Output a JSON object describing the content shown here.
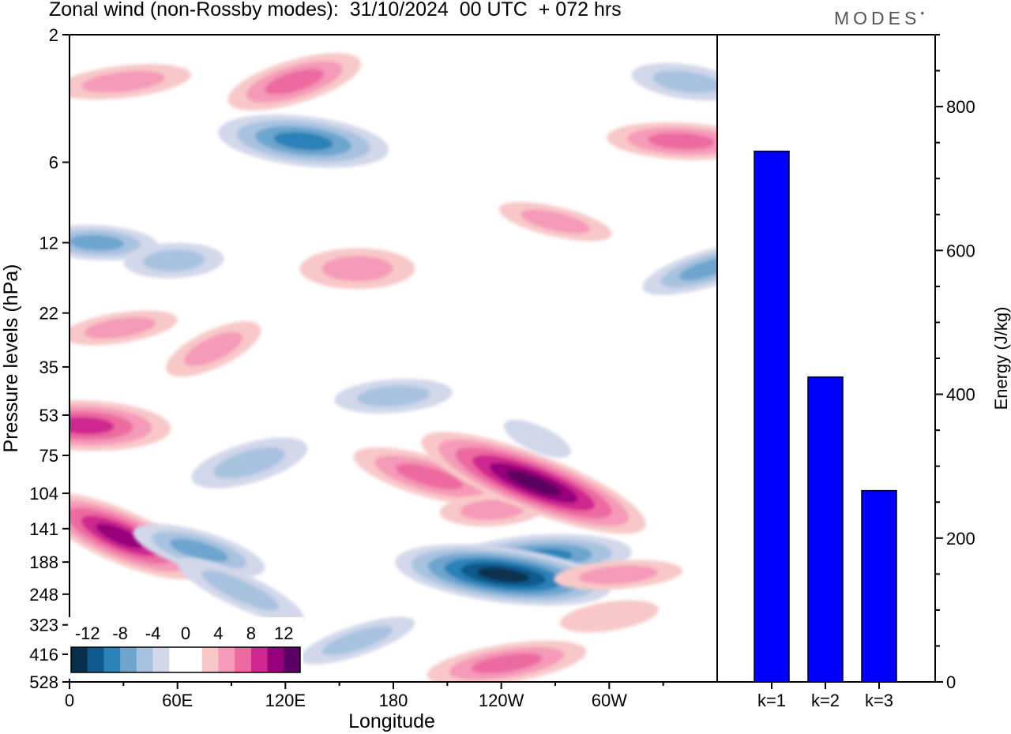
{
  "header": {
    "title": "Zonal wind (non-Rossby modes):  31/10/2024  00 UTC  + 072 hrs",
    "brand": "MODES"
  },
  "colors": {
    "contour_scale": [
      "#08304d",
      "#0e5a8f",
      "#2b82b8",
      "#6ea5cf",
      "#a8c3e0",
      "#d2d7ea",
      "#ffffff",
      "#ffffff",
      "#f8c8c8",
      "#f59ab8",
      "#ec6aa0",
      "#cf268f",
      "#96007a",
      "#5b0062"
    ],
    "bar": "#0000ff",
    "axis": "#000000"
  },
  "chart_data": [
    {
      "type": "heatmap",
      "title": "Zonal wind (non-Rossby modes):  31/10/2024  00 UTC  + 072 hrs",
      "xlabel": "Longitude",
      "ylabel": "Pressure levels (hPa)",
      "xlim": [
        0,
        360
      ],
      "x_ticks": [
        "0",
        "60E",
        "120E",
        "180",
        "120W",
        "60W"
      ],
      "x_tick_values": [
        0,
        60,
        120,
        180,
        240,
        300
      ],
      "y_scale": "log",
      "y_ticks": [
        "2",
        "6",
        "12",
        "22",
        "35",
        "53",
        "75",
        "104",
        "141",
        "188",
        "248",
        "323",
        "416",
        "528"
      ],
      "colorbar": {
        "labels": [
          "-12",
          "-8",
          "-4",
          "0",
          "4",
          "8",
          "12"
        ],
        "range": [
          -14,
          14
        ],
        "step": 2
      },
      "features": [
        {
          "x": 15,
          "p": 12,
          "value": -6
        },
        {
          "x": 30,
          "p": 3,
          "value": 4
        },
        {
          "x": 58,
          "p": 14,
          "value": -3
        },
        {
          "x": 130,
          "p": 5,
          "value": -8
        },
        {
          "x": 125,
          "p": 3,
          "value": 5
        },
        {
          "x": 28,
          "p": 25,
          "value": 3
        },
        {
          "x": 8,
          "p": 58,
          "value": 7
        },
        {
          "x": 28,
          "p": 150,
          "value": 9
        },
        {
          "x": 72,
          "p": 170,
          "value": -5
        },
        {
          "x": 100,
          "p": 80,
          "value": -4
        },
        {
          "x": 95,
          "p": 240,
          "value": -3
        },
        {
          "x": 200,
          "p": 90,
          "value": 5
        },
        {
          "x": 235,
          "p": 120,
          "value": 4
        },
        {
          "x": 258,
          "p": 95,
          "value": 11
        },
        {
          "x": 262,
          "p": 180,
          "value": -7
        },
        {
          "x": 241,
          "p": 210,
          "value": -11
        },
        {
          "x": 243,
          "p": 450,
          "value": 5
        },
        {
          "x": 270,
          "p": 10,
          "value": 4
        },
        {
          "x": 340,
          "p": 5,
          "value": 5
        },
        {
          "x": 343,
          "p": 3,
          "value": -4
        },
        {
          "x": 305,
          "p": 210,
          "value": 3
        },
        {
          "x": 160,
          "p": 370,
          "value": -3
        },
        {
          "x": 300,
          "p": 300,
          "value": 2
        },
        {
          "x": 160,
          "p": 15,
          "value": 3
        },
        {
          "x": 80,
          "p": 30,
          "value": 3
        },
        {
          "x": 355,
          "p": 15,
          "value": -5
        },
        {
          "x": 180,
          "p": 45,
          "value": -3
        },
        {
          "x": 260,
          "p": 65,
          "value": -2
        }
      ]
    },
    {
      "type": "bar",
      "categories": [
        "k=1",
        "k=2",
        "k=3"
      ],
      "values": [
        738,
        424,
        266
      ],
      "ylabel": "Energy (J/kg)",
      "ylim": [
        0,
        900
      ],
      "y_ticks": [
        "0",
        "200",
        "400",
        "600",
        "800"
      ],
      "y_tick_values": [
        0,
        200,
        400,
        600,
        800
      ]
    }
  ]
}
